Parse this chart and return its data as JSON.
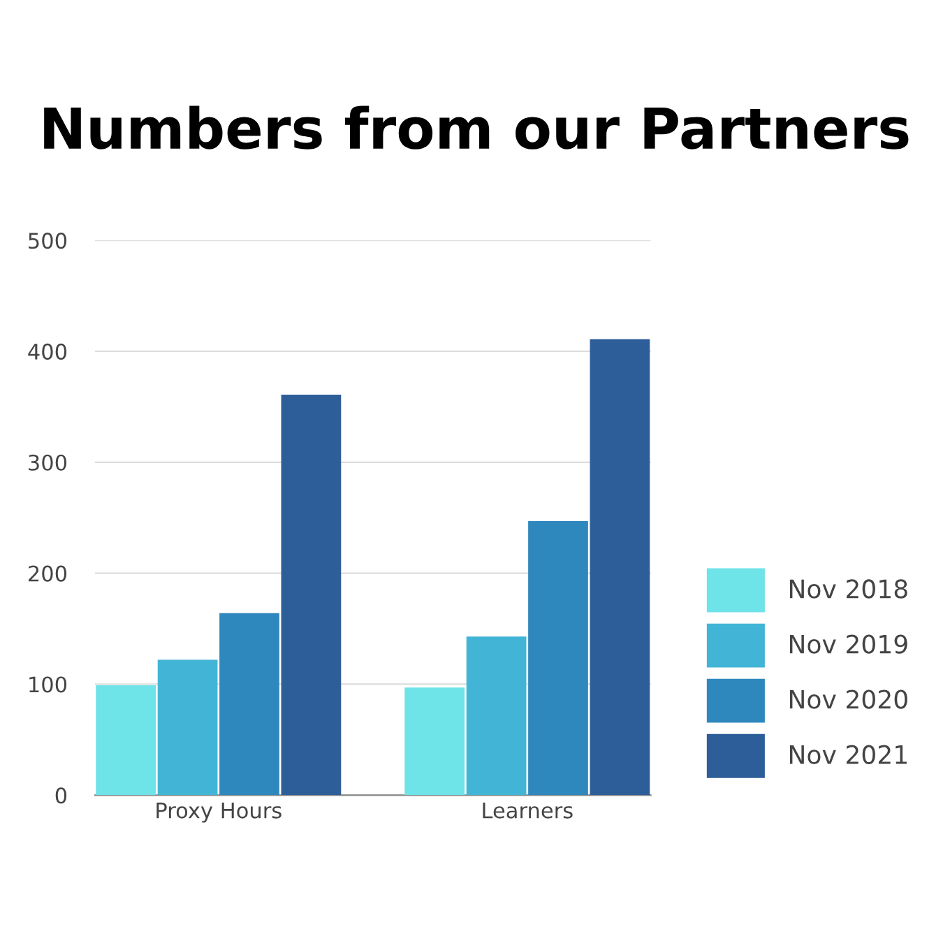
{
  "chart_data": {
    "type": "bar",
    "title": "Numbers from our Partners",
    "categories": [
      "Proxy Hours",
      "Learners"
    ],
    "series": [
      {
        "name": "Nov 2018",
        "color": "#6ee3e8",
        "values": [
          99,
          97
        ]
      },
      {
        "name": "Nov 2019",
        "color": "#42b5d6",
        "values": [
          122,
          143
        ]
      },
      {
        "name": "Nov 2020",
        "color": "#2e88bd",
        "values": [
          164,
          247
        ]
      },
      {
        "name": "Nov 2021",
        "color": "#2e5e99",
        "values": [
          361,
          411
        ]
      }
    ],
    "ylim": [
      0,
      500
    ],
    "yticks": [
      0,
      100,
      200,
      300,
      400,
      500
    ],
    "grid": "y",
    "legend": "right"
  }
}
